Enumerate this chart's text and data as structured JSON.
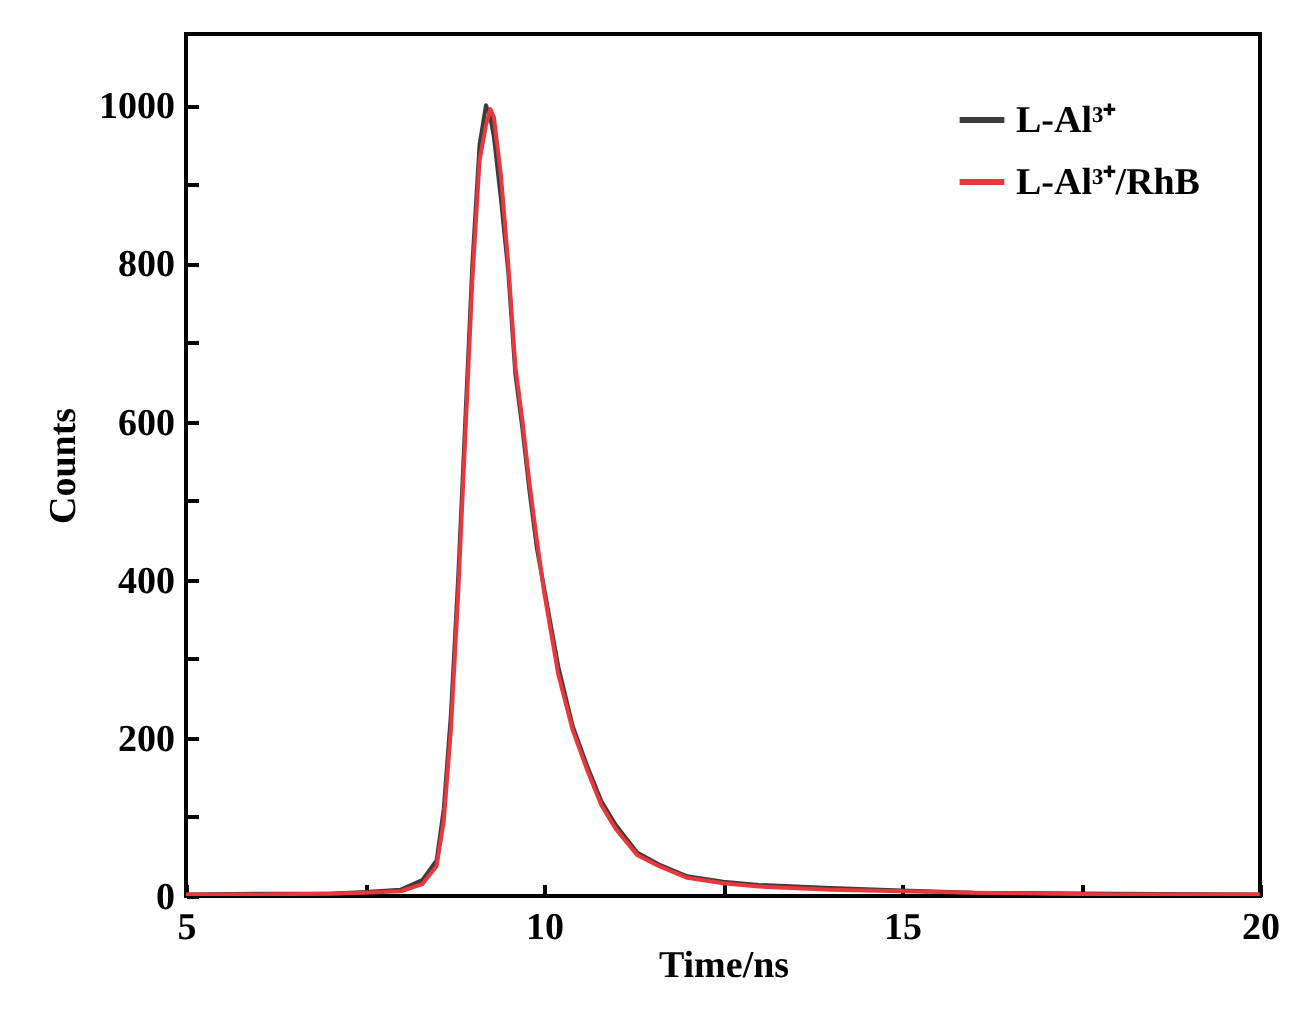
{
  "chart_data": {
    "type": "line",
    "xlabel": "Time/ns",
    "ylabel": "Counts",
    "x": [
      5,
      6,
      7,
      7.5,
      8,
      8.3,
      8.5,
      8.6,
      8.7,
      8.8,
      8.9,
      9.0,
      9.1,
      9.19,
      9.25,
      9.3,
      9.4,
      9.5,
      9.6,
      9.7,
      9.8,
      9.9,
      10.0,
      10.2,
      10.4,
      10.6,
      10.8,
      11.0,
      11.3,
      11.6,
      12.0,
      12.5,
      13,
      14,
      15,
      16,
      18,
      20
    ],
    "series": [
      {
        "name": "L-Al³⁺",
        "color": "#3c3c3c",
        "values": [
          2,
          3,
          3,
          5,
          8,
          20,
          45,
          110,
          230,
          400,
          600,
          800,
          950,
          1000,
          985,
          960,
          880,
          790,
          660,
          590,
          510,
          440,
          390,
          290,
          215,
          165,
          120,
          90,
          55,
          40,
          25,
          18,
          14,
          10,
          7,
          4,
          3,
          2
        ]
      },
      {
        "name": "L-Al³⁺/RhB",
        "color": "#e8383d",
        "values": [
          2,
          2,
          3,
          4,
          6,
          15,
          38,
          95,
          210,
          380,
          580,
          780,
          930,
          975,
          995,
          985,
          910,
          800,
          670,
          600,
          520,
          450,
          385,
          280,
          210,
          160,
          115,
          85,
          52,
          38,
          23,
          16,
          12,
          8,
          6,
          4,
          2,
          2
        ]
      }
    ],
    "xlim": [
      5,
      20
    ],
    "xticks": [
      5,
      {
        "value": 7.5,
        "label": null
      },
      10,
      {
        "value": 12.5,
        "label": null
      },
      15,
      {
        "value": 17.5,
        "label": null
      },
      20
    ],
    "ylim": [
      0,
      1090
    ],
    "yticks": [
      0,
      {
        "value": 100,
        "label": null
      },
      200,
      {
        "value": 300,
        "label": null
      },
      400,
      {
        "value": 500,
        "label": null
      },
      600,
      {
        "value": 700,
        "label": null
      },
      800,
      {
        "value": 900,
        "label": null
      },
      1000
    ],
    "legend": "top right",
    "grid": false,
    "marker": "none",
    "line_style": "solid"
  }
}
